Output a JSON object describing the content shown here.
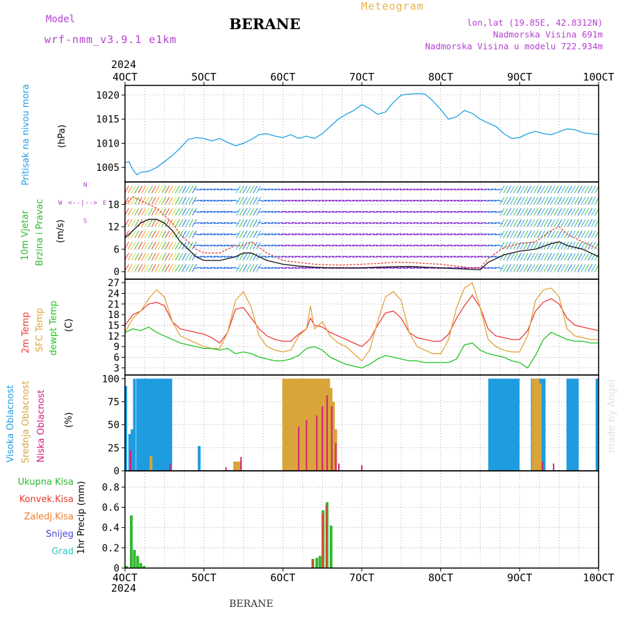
{
  "header": {
    "title": "BERANE",
    "model_label": "Model",
    "model_name": "wrf-nmm_v3.9.1 e1km",
    "meteogram_label": "Meteogram",
    "location": "lon,lat (19.85E, 42.8312N)",
    "altitude": "Nadmorska Visina 691m",
    "model_altitude": "Nadmorska Visina u modelu 722.934m",
    "year": "2024",
    "footer_station": "BERANE",
    "watermark": "made by Angel"
  },
  "colors": {
    "pressure": "#1ea0e6",
    "wind_speed": "#111111",
    "wind_gust": "#e23b2b",
    "temp2m": "#ec3a3a",
    "sfc_temp": "#e3a23a",
    "dewpt": "#22c422",
    "high_cloud": "#1e9ce0",
    "mid_cloud": "#d9a43a",
    "low_cloud": "#d2207a",
    "total_precip": "#2fb82f",
    "conv_precip": "#e23b2b",
    "frozen_precip": "#ef7a2d",
    "snow": "#4848d8",
    "hail": "#27c9c0"
  },
  "chart_data": [
    {
      "type": "line",
      "panel": "pressure",
      "ylabel_color_text": "Pritisak na nivou mora",
      "ylabel_unit": "(hPa)",
      "ylim": [
        1002,
        1022
      ],
      "yticks": [
        1005,
        1010,
        1015,
        1020
      ],
      "xlim": [
        4,
        10
      ],
      "xticks": [
        "4OCT",
        "5OCT",
        "6OCT",
        "7OCT",
        "8OCT",
        "9OCT",
        "10OCT"
      ],
      "grid": true,
      "series": [
        {
          "color_key": "pressure",
          "x": [
            4.0,
            4.05,
            4.1,
            4.15,
            4.2,
            4.3,
            4.4,
            4.5,
            4.6,
            4.7,
            4.8,
            4.9,
            5.0,
            5.1,
            5.2,
            5.3,
            5.4,
            5.5,
            5.6,
            5.7,
            5.8,
            5.9,
            6.0,
            6.1,
            6.2,
            6.3,
            6.4,
            6.5,
            6.6,
            6.7,
            6.8,
            6.9,
            7.0,
            7.1,
            7.2,
            7.3,
            7.4,
            7.5,
            7.6,
            7.7,
            7.8,
            7.9,
            8.0,
            8.1,
            8.2,
            8.3,
            8.4,
            8.5,
            8.6,
            8.7,
            8.8,
            8.9,
            9.0,
            9.1,
            9.2,
            9.3,
            9.4,
            9.5,
            9.6,
            9.7,
            9.8,
            9.9,
            10.0
          ],
          "values": [
            1006.0,
            1006.2,
            1004.5,
            1003.5,
            1004.0,
            1004.2,
            1005.0,
            1006.2,
            1007.5,
            1009.0,
            1010.8,
            1011.2,
            1011.0,
            1010.5,
            1011.0,
            1010.2,
            1009.5,
            1010.0,
            1010.8,
            1011.8,
            1012.0,
            1011.5,
            1011.2,
            1011.8,
            1011.0,
            1011.5,
            1011.0,
            1012.0,
            1013.5,
            1015.0,
            1016.0,
            1016.8,
            1018.0,
            1017.2,
            1016.0,
            1016.5,
            1018.5,
            1020.0,
            1020.2,
            1020.3,
            1020.2,
            1018.8,
            1017.0,
            1015.0,
            1015.5,
            1016.8,
            1016.2,
            1015.0,
            1014.2,
            1013.5,
            1012.0,
            1011.0,
            1011.2,
            1012.0,
            1012.5,
            1012.0,
            1011.8,
            1012.4,
            1013.0,
            1012.8,
            1012.2,
            1012.0,
            1011.8
          ]
        }
      ]
    },
    {
      "type": "line",
      "panel": "wind",
      "ylabel_color_text_1": "10m Vjetar",
      "ylabel_color_text_2": "Brzina i Pravac",
      "ylabel_unit": "(m/s)",
      "compass_labels": {
        "n": "N",
        "s": "S",
        "e": "E",
        "w": "W"
      },
      "ylim": [
        -2,
        24
      ],
      "yticks": [
        0,
        6,
        12,
        18
      ],
      "grid": true,
      "series": [
        {
          "name_hidden": true,
          "color_key": "wind_speed",
          "x": [
            4.0,
            4.1,
            4.2,
            4.3,
            4.4,
            4.5,
            4.6,
            4.7,
            4.8,
            4.9,
            5.0,
            5.2,
            5.4,
            5.5,
            5.6,
            5.8,
            6.0,
            6.2,
            6.4,
            6.6,
            6.8,
            7.0,
            7.2,
            7.4,
            7.6,
            7.8,
            8.0,
            8.2,
            8.4,
            8.5,
            8.6,
            8.8,
            9.0,
            9.2,
            9.4,
            9.5,
            9.6,
            9.8,
            10.0
          ],
          "values": [
            9,
            11,
            13,
            14,
            14,
            13,
            11,
            8,
            6,
            4,
            3,
            3,
            4,
            5,
            5,
            3,
            2,
            1.5,
            1.2,
            1.0,
            1.0,
            1.0,
            1.2,
            1.3,
            1.4,
            1.2,
            1.0,
            0.8,
            0.6,
            0.5,
            2.5,
            4.5,
            5.5,
            6.0,
            7.5,
            8.0,
            7.0,
            6.0,
            4.0
          ]
        },
        {
          "name_hidden": true,
          "color_key": "wind_gust",
          "x": [
            4.0,
            4.1,
            4.2,
            4.3,
            4.4,
            4.5,
            4.6,
            4.7,
            4.8,
            4.9,
            5.0,
            5.2,
            5.4,
            5.5,
            5.6,
            5.8,
            6.0,
            6.2,
            6.4,
            6.6,
            6.8,
            7.0,
            7.2,
            7.4,
            7.6,
            7.8,
            8.0,
            8.2,
            8.4,
            8.5,
            8.6,
            8.8,
            9.0,
            9.2,
            9.4,
            9.5,
            9.6,
            9.8,
            10.0
          ],
          "values": [
            18,
            20,
            19,
            18,
            17,
            15,
            13,
            10,
            8,
            6,
            5,
            5,
            7,
            7,
            8,
            5,
            3,
            2.5,
            2.0,
            1.8,
            1.8,
            2.0,
            2.2,
            2.5,
            2.5,
            2.2,
            2.0,
            1.5,
            1.0,
            1.0,
            3.5,
            6.5,
            7.5,
            8.0,
            11.0,
            12.0,
            10.0,
            8.0,
            6.0
          ]
        }
      ]
    },
    {
      "type": "line",
      "panel": "temperature",
      "ylabel_color_text_1": "2m Temp",
      "ylabel_color_text_2": "SFC Temp",
      "ylabel_color_text_3": "dewpt Temp",
      "ylabel_unit": "(C)",
      "ylim": [
        1,
        28
      ],
      "yticks": [
        3,
        6,
        9,
        12,
        15,
        18,
        21,
        24,
        27
      ],
      "grid": true,
      "series": [
        {
          "color_key": "temp2m",
          "x": [
            4.0,
            4.1,
            4.2,
            4.3,
            4.4,
            4.5,
            4.6,
            4.7,
            4.8,
            4.9,
            5.0,
            5.1,
            5.2,
            5.3,
            5.4,
            5.5,
            5.6,
            5.7,
            5.8,
            5.9,
            6.0,
            6.1,
            6.2,
            6.3,
            6.35,
            6.4,
            6.5,
            6.6,
            6.7,
            6.8,
            6.9,
            7.0,
            7.1,
            7.2,
            7.3,
            7.4,
            7.5,
            7.6,
            7.7,
            7.8,
            7.9,
            8.0,
            8.1,
            8.2,
            8.3,
            8.4,
            8.5,
            8.6,
            8.7,
            8.8,
            8.9,
            9.0,
            9.1,
            9.2,
            9.3,
            9.4,
            9.5,
            9.6,
            9.7,
            9.8,
            9.9,
            10.0
          ],
          "values": [
            15,
            18,
            19,
            21,
            21.5,
            20.5,
            16,
            14,
            13.5,
            13,
            12.5,
            11.5,
            10,
            13,
            19.5,
            20,
            17,
            14,
            12,
            11,
            10.5,
            10.5,
            12.5,
            14,
            17,
            15,
            14.5,
            13,
            12,
            11,
            10,
            9,
            11,
            15,
            18.5,
            19,
            17,
            13,
            11.5,
            11,
            10.5,
            10.5,
            12.5,
            17,
            20.5,
            23.5,
            20,
            14,
            12,
            11.5,
            11,
            11,
            13.5,
            19,
            21.5,
            22.5,
            21,
            17,
            15,
            14.5,
            14,
            13.5
          ]
        },
        {
          "color_key": "sfc_temp",
          "x": [
            4.0,
            4.1,
            4.2,
            4.3,
            4.4,
            4.5,
            4.6,
            4.7,
            4.8,
            4.9,
            5.0,
            5.1,
            5.2,
            5.3,
            5.4,
            5.5,
            5.6,
            5.7,
            5.8,
            5.9,
            6.0,
            6.1,
            6.2,
            6.3,
            6.35,
            6.4,
            6.5,
            6.6,
            6.7,
            6.8,
            6.9,
            7.0,
            7.1,
            7.2,
            7.3,
            7.4,
            7.5,
            7.6,
            7.7,
            7.8,
            7.9,
            8.0,
            8.1,
            8.2,
            8.3,
            8.4,
            8.5,
            8.6,
            8.7,
            8.8,
            8.9,
            9.0,
            9.1,
            9.2,
            9.3,
            9.4,
            9.5,
            9.6,
            9.7,
            9.8,
            9.9,
            10.0
          ],
          "values": [
            13,
            17,
            19,
            22.5,
            25,
            23,
            16,
            12,
            11,
            10,
            9,
            8.5,
            8.5,
            13,
            22,
            24.5,
            20,
            12,
            9,
            8,
            7.5,
            8,
            12,
            14,
            20.5,
            14,
            16,
            12,
            10,
            9,
            7,
            5,
            8,
            16,
            23,
            24.5,
            22,
            13,
            9,
            8,
            7,
            7,
            11,
            20,
            25.5,
            27,
            20,
            11,
            9,
            8,
            7.5,
            7.5,
            12,
            22,
            25,
            25.5,
            23,
            14,
            12,
            11.5,
            11,
            11
          ]
        },
        {
          "color_key": "dewpt",
          "x": [
            4.0,
            4.1,
            4.2,
            4.3,
            4.4,
            4.5,
            4.6,
            4.7,
            4.8,
            4.9,
            5.0,
            5.1,
            5.2,
            5.3,
            5.4,
            5.5,
            5.6,
            5.7,
            5.8,
            5.9,
            6.0,
            6.1,
            6.2,
            6.3,
            6.4,
            6.5,
            6.6,
            6.7,
            6.8,
            6.9,
            7.0,
            7.1,
            7.2,
            7.3,
            7.4,
            7.5,
            7.6,
            7.7,
            7.8,
            7.9,
            8.0,
            8.1,
            8.2,
            8.3,
            8.4,
            8.5,
            8.6,
            8.7,
            8.8,
            8.9,
            9.0,
            9.1,
            9.2,
            9.3,
            9.4,
            9.5,
            9.6,
            9.7,
            9.8,
            9.9,
            10.0
          ],
          "values": [
            13,
            14,
            13.5,
            14.5,
            13,
            12,
            11,
            10,
            9.5,
            9,
            8.5,
            8.5,
            8,
            8.5,
            7,
            7.5,
            7,
            6,
            5.5,
            5,
            5,
            5.5,
            6.5,
            8.5,
            9,
            8,
            6,
            5,
            4,
            3.5,
            3,
            4,
            5.5,
            6.5,
            6,
            5.5,
            5,
            5,
            4.5,
            4.5,
            4.5,
            4.5,
            5.5,
            9.5,
            10,
            8,
            7,
            6.5,
            6,
            5,
            4.5,
            3,
            6.5,
            11,
            13,
            12,
            11,
            10.5,
            10.5,
            10,
            10
          ]
        }
      ]
    },
    {
      "type": "bar",
      "panel": "clouds",
      "ylabel_color_text_1": "Visoka Oblacnost",
      "ylabel_color_text_2": "Srednja Oblacnost",
      "ylabel_color_text_3": "Niska Oblacnost",
      "ylabel_unit": "(%)",
      "ylim": [
        0,
        104
      ],
      "yticks": [
        0,
        25,
        50,
        75,
        100
      ],
      "grid": true,
      "series": [
        {
          "color_key": "high_cloud",
          "x": [
            4.01,
            4.06,
            4.09,
            4.12,
            4.16,
            4.19,
            4.22,
            4.25,
            4.28,
            4.31,
            4.34,
            4.37,
            4.4,
            4.43,
            4.46,
            4.49,
            4.52,
            4.55,
            4.58,
            4.94,
            8.62,
            8.65,
            8.68,
            8.71,
            8.74,
            8.77,
            8.8,
            8.83,
            8.86,
            8.89,
            8.92,
            8.95,
            8.98,
            9.16,
            9.19,
            9.22,
            9.25,
            9.28,
            9.31,
            9.61,
            9.64,
            9.67,
            9.7,
            9.73,
            9.98
          ],
          "values": [
            92,
            40,
            45,
            100,
            100,
            100,
            100,
            100,
            100,
            100,
            100,
            100,
            100,
            100,
            100,
            100,
            100,
            100,
            100,
            27,
            100,
            100,
            100,
            100,
            100,
            100,
            100,
            100,
            100,
            100,
            100,
            100,
            100,
            100,
            100,
            100,
            100,
            100,
            100,
            100,
            100,
            100,
            100,
            100,
            100
          ]
        },
        {
          "color_key": "mid_cloud",
          "x": [
            4.33,
            5.39,
            5.42,
            5.45,
            6.01,
            6.04,
            6.07,
            6.1,
            6.13,
            6.16,
            6.19,
            6.22,
            6.25,
            6.28,
            6.31,
            6.34,
            6.37,
            6.4,
            6.43,
            6.46,
            6.49,
            6.52,
            6.55,
            6.58,
            6.61,
            6.64,
            6.67,
            9.17,
            9.2,
            9.23,
            9.26
          ],
          "values": [
            16,
            10,
            10,
            10,
            100,
            100,
            100,
            100,
            100,
            100,
            100,
            100,
            100,
            100,
            100,
            100,
            100,
            100,
            100,
            100,
            100,
            100,
            100,
            100,
            90,
            75,
            45,
            100,
            100,
            100,
            95
          ]
        },
        {
          "color_key": "low_cloud",
          "x": [
            4.07,
            4.57,
            5.28,
            5.47,
            6.2,
            6.3,
            6.43,
            6.5,
            6.56,
            6.62,
            6.67,
            6.71,
            7.0,
            9.29,
            9.43
          ],
          "values": [
            22,
            8,
            4,
            15,
            48,
            55,
            60,
            70,
            82,
            70,
            30,
            8,
            6,
            10,
            8
          ]
        }
      ]
    },
    {
      "type": "bar",
      "panel": "precipitation",
      "ylabel_unit": "1hr Precip (mm)",
      "legend": [
        "Ukupna Kisa",
        "Konvek.Kisa",
        "Zaledj.Kisa",
        "Snijeg",
        "Grad"
      ],
      "ylim": [
        0,
        0.96
      ],
      "yticks": [
        0,
        0.2,
        0.4,
        0.6,
        0.8
      ],
      "grid": true,
      "series": [
        {
          "color_key": "total_precip",
          "x": [
            4.02,
            4.08,
            4.12,
            4.16,
            4.2,
            4.24,
            6.38,
            6.43,
            6.47,
            6.51,
            6.56,
            6.61
          ],
          "values": [
            0.02,
            0.52,
            0.18,
            0.12,
            0.05,
            0.02,
            0.09,
            0.1,
            0.12,
            0.57,
            0.65,
            0.42
          ]
        },
        {
          "color_key": "conv_precip",
          "x": [
            6.38,
            6.5,
            6.55
          ],
          "values": [
            0.09,
            0.54,
            0.62
          ]
        }
      ]
    }
  ]
}
